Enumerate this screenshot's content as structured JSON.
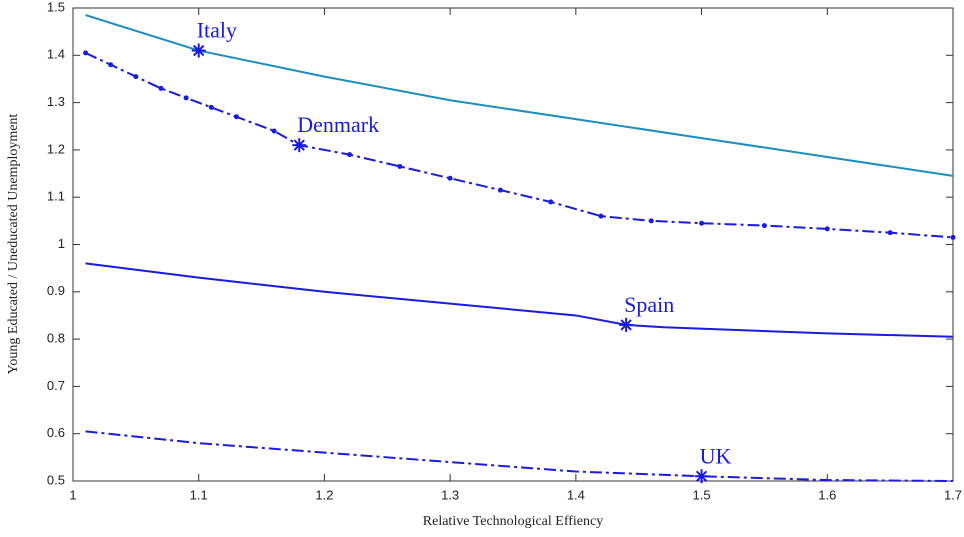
{
  "chart_data": {
    "type": "line",
    "xlabel": "Relative Technological Effiency",
    "ylabel": "Young Educated / Uneducated Unemployment",
    "xlim": [
      1,
      1.7
    ],
    "ylim": [
      0.5,
      1.5
    ],
    "xticks": [
      1,
      1.1,
      1.2,
      1.3,
      1.4,
      1.5,
      1.6,
      1.7
    ],
    "yticks": [
      0.5,
      0.6,
      0.7,
      0.8,
      0.9,
      1,
      1.1,
      1.2,
      1.3,
      1.4,
      1.5
    ],
    "grid": false,
    "series": [
      {
        "color": "#1b8ec0",
        "style": "solid",
        "x": [
          1.01,
          1.1,
          1.2,
          1.3,
          1.4,
          1.5,
          1.6,
          1.7
        ],
        "values": [
          1.485,
          1.41,
          1.355,
          1.305,
          1.265,
          1.225,
          1.185,
          1.145
        ]
      },
      {
        "color": "#1a1ae0",
        "style": "dashdot",
        "marker": "dot",
        "x": [
          1.01,
          1.03,
          1.05,
          1.07,
          1.09,
          1.11,
          1.13,
          1.16,
          1.18,
          1.22,
          1.26,
          1.3,
          1.34,
          1.38,
          1.42,
          1.46,
          1.5,
          1.55,
          1.6,
          1.65,
          1.7
        ],
        "values": [
          1.405,
          1.38,
          1.355,
          1.33,
          1.31,
          1.29,
          1.27,
          1.24,
          1.21,
          1.19,
          1.165,
          1.14,
          1.115,
          1.09,
          1.06,
          1.05,
          1.045,
          1.04,
          1.033,
          1.025,
          1.015
        ]
      },
      {
        "color": "#1a1ae0",
        "style": "solid",
        "x": [
          1.01,
          1.1,
          1.2,
          1.3,
          1.4,
          1.44,
          1.47,
          1.6,
          1.7
        ],
        "values": [
          0.96,
          0.93,
          0.9,
          0.875,
          0.85,
          0.83,
          0.825,
          0.812,
          0.805
        ]
      },
      {
        "color": "#1a1ae0",
        "style": "dashdot",
        "x": [
          1.01,
          1.1,
          1.2,
          1.3,
          1.4,
          1.5,
          1.6,
          1.7
        ],
        "values": [
          0.605,
          0.58,
          0.56,
          0.54,
          0.52,
          0.51,
          0.502,
          0.5
        ]
      }
    ],
    "annotations": [
      {
        "label": "Italy",
        "x": 1.1,
        "y": 1.41
      },
      {
        "label": "Denmark",
        "x": 1.18,
        "y": 1.21
      },
      {
        "label": "Spain",
        "x": 1.44,
        "y": 0.83
      },
      {
        "label": "UK",
        "x": 1.5,
        "y": 0.51
      }
    ],
    "annotation_color": "#1a1ae0"
  }
}
